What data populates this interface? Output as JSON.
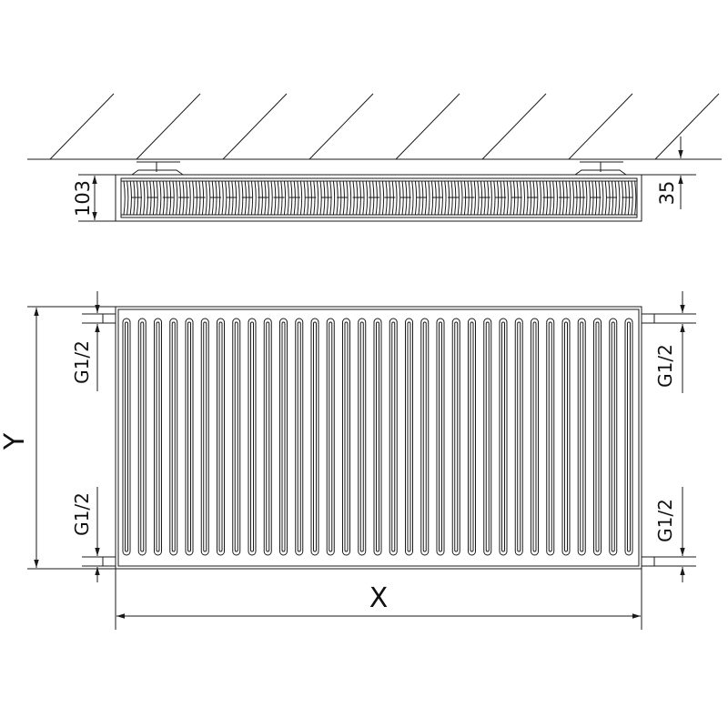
{
  "diagram": {
    "side_view": {
      "depth_label": "103",
      "wall_distance_label": "35"
    },
    "front_view": {
      "height_label": "Y",
      "width_label": "X",
      "connections": [
        {
          "side": "left",
          "position": "top",
          "label": "G1/2"
        },
        {
          "side": "left",
          "position": "bottom",
          "label": "G1/2"
        },
        {
          "side": "right",
          "position": "top",
          "label": "G1/2"
        },
        {
          "side": "right",
          "position": "bottom",
          "label": "G1/2"
        }
      ]
    },
    "line_color": "#1a1a1a"
  }
}
